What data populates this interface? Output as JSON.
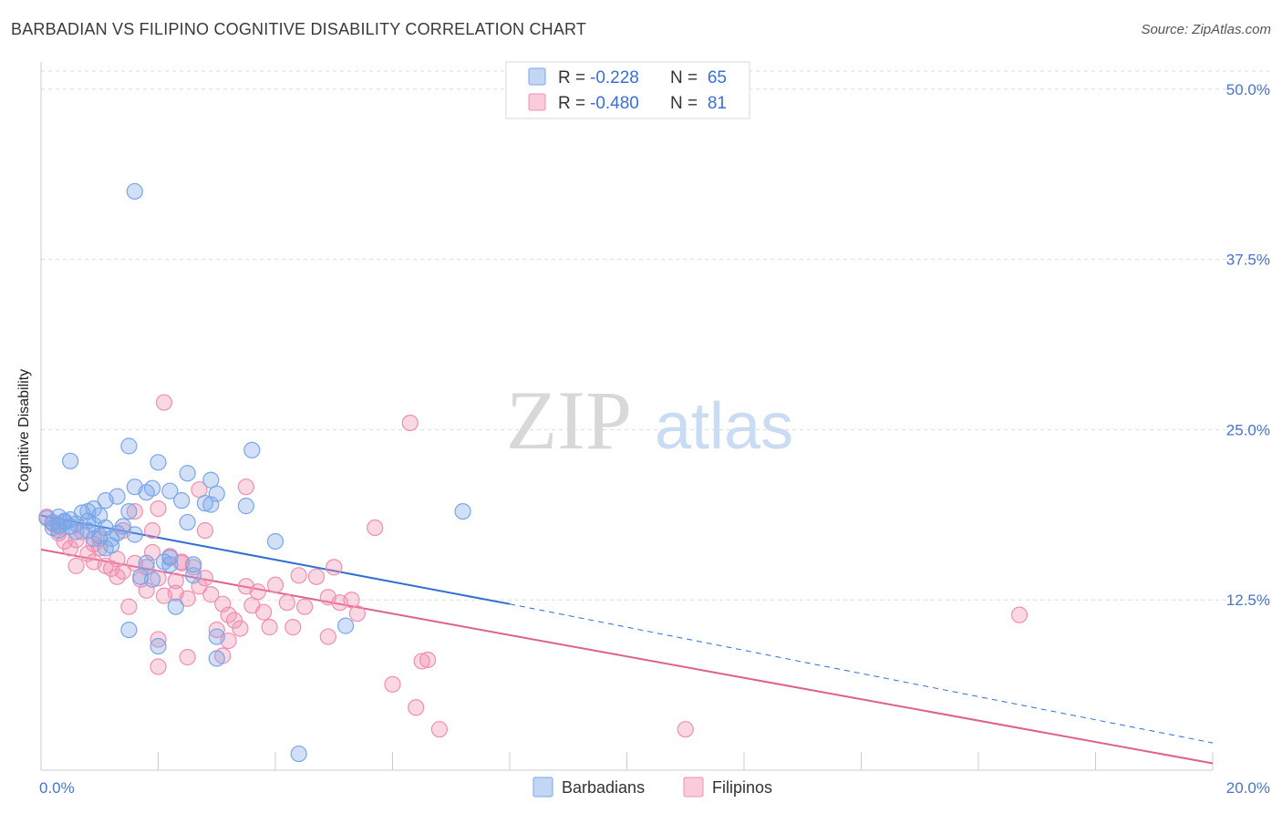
{
  "chart_data": {
    "type": "scatter",
    "title": "BARBADIAN VS FILIPINO COGNITIVE DISABILITY CORRELATION CHART",
    "source": "Source: ZipAtlas.com",
    "ylabel": "Cognitive Disability",
    "xlabel": "",
    "x_ticks": [
      "0.0%",
      "20.0%"
    ],
    "y_ticks": [
      "12.5%",
      "25.0%",
      "37.5%",
      "50.0%"
    ],
    "xlim": [
      0,
      20
    ],
    "ylim": [
      0,
      52
    ],
    "watermark": {
      "zip": "ZIP",
      "atlas": "atlas"
    },
    "legend": {
      "r_label": "R =",
      "n_label": "N =",
      "entries": [
        {
          "name": "Barbadians",
          "r": "-0.228",
          "n": "65",
          "color": "#7aa6e8"
        },
        {
          "name": "Filipinos",
          "r": "-0.480",
          "n": "81",
          "color": "#f08fb0"
        }
      ]
    },
    "series": [
      {
        "name": "Barbadians",
        "color": "#7aa6e8",
        "line_color": "#2f6fd1",
        "trend": {
          "x0": 0,
          "y0": 18.7,
          "x1": 8,
          "y1": 12.2,
          "dash_to_x": 20,
          "dash_to_y": 2.0
        },
        "points": [
          [
            0.1,
            18.5
          ],
          [
            0.2,
            18.2
          ],
          [
            0.2,
            17.8
          ],
          [
            0.3,
            18.6
          ],
          [
            0.3,
            18.0
          ],
          [
            0.4,
            18.3
          ],
          [
            0.5,
            17.9
          ],
          [
            0.5,
            18.4
          ],
          [
            0.6,
            18.1
          ],
          [
            0.6,
            17.5
          ],
          [
            0.7,
            18.9
          ],
          [
            0.8,
            18.3
          ],
          [
            0.8,
            17.6
          ],
          [
            0.9,
            19.2
          ],
          [
            0.9,
            18.0
          ],
          [
            1.0,
            17.2
          ],
          [
            1.0,
            18.7
          ],
          [
            1.1,
            17.8
          ],
          [
            1.2,
            17.0
          ],
          [
            1.2,
            16.5
          ],
          [
            1.3,
            20.1
          ],
          [
            1.4,
            17.9
          ],
          [
            1.5,
            19.0
          ],
          [
            1.5,
            10.3
          ],
          [
            1.6,
            17.3
          ],
          [
            1.6,
            20.8
          ],
          [
            1.7,
            14.2
          ],
          [
            1.8,
            20.4
          ],
          [
            1.9,
            20.7
          ],
          [
            2.0,
            22.6
          ],
          [
            2.1,
            15.3
          ],
          [
            2.2,
            15.6
          ],
          [
            2.2,
            20.5
          ],
          [
            2.3,
            12.0
          ],
          [
            2.4,
            19.8
          ],
          [
            2.5,
            18.2
          ],
          [
            2.6,
            14.3
          ],
          [
            1.5,
            23.8
          ],
          [
            1.1,
            19.8
          ],
          [
            0.8,
            19.0
          ],
          [
            1.6,
            42.5
          ],
          [
            2.5,
            21.8
          ],
          [
            2.9,
            19.5
          ],
          [
            2.9,
            21.3
          ],
          [
            3.0,
            20.3
          ],
          [
            1.9,
            14.0
          ],
          [
            2.2,
            15.1
          ],
          [
            3.5,
            19.4
          ],
          [
            3.6,
            23.5
          ],
          [
            2.0,
            9.1
          ],
          [
            3.0,
            9.8
          ],
          [
            3.0,
            8.2
          ],
          [
            4.0,
            16.8
          ],
          [
            5.2,
            10.6
          ],
          [
            7.2,
            19.0
          ],
          [
            1.8,
            15.2
          ],
          [
            2.6,
            15.1
          ],
          [
            0.5,
            22.7
          ],
          [
            0.3,
            17.6
          ],
          [
            4.4,
            1.2
          ],
          [
            2.8,
            19.6
          ],
          [
            0.4,
            18.2
          ],
          [
            1.1,
            16.3
          ],
          [
            0.9,
            17.0
          ],
          [
            1.3,
            17.4
          ]
        ]
      },
      {
        "name": "Filipinos",
        "color": "#f08fb0",
        "line_color": "#e0608c",
        "trend": {
          "x0": 0,
          "y0": 16.2,
          "x1": 20,
          "y1": 0.5
        },
        "points": [
          [
            0.1,
            18.6
          ],
          [
            0.2,
            18.1
          ],
          [
            0.3,
            17.4
          ],
          [
            0.4,
            16.8
          ],
          [
            0.5,
            16.3
          ],
          [
            0.6,
            16.9
          ],
          [
            0.7,
            17.5
          ],
          [
            0.8,
            15.9
          ],
          [
            0.9,
            16.6
          ],
          [
            1.0,
            17.0
          ],
          [
            1.1,
            15.0
          ],
          [
            1.2,
            14.8
          ],
          [
            1.3,
            15.5
          ],
          [
            1.4,
            14.6
          ],
          [
            1.5,
            12.0
          ],
          [
            1.6,
            15.2
          ],
          [
            1.7,
            14.0
          ],
          [
            1.8,
            13.2
          ],
          [
            1.9,
            17.6
          ],
          [
            2.0,
            14.1
          ],
          [
            2.1,
            12.8
          ],
          [
            2.2,
            15.7
          ],
          [
            2.3,
            13.9
          ],
          [
            2.4,
            15.2
          ],
          [
            2.5,
            12.6
          ],
          [
            2.6,
            14.9
          ],
          [
            2.7,
            13.5
          ],
          [
            2.8,
            14.1
          ],
          [
            2.9,
            12.9
          ],
          [
            3.0,
            10.3
          ],
          [
            3.1,
            12.2
          ],
          [
            3.2,
            11.4
          ],
          [
            3.3,
            11.0
          ],
          [
            3.4,
            10.4
          ],
          [
            3.5,
            13.5
          ],
          [
            3.6,
            12.1
          ],
          [
            3.7,
            13.1
          ],
          [
            3.8,
            11.6
          ],
          [
            3.9,
            10.5
          ],
          [
            4.0,
            13.6
          ],
          [
            4.2,
            12.3
          ],
          [
            4.3,
            10.5
          ],
          [
            4.4,
            14.3
          ],
          [
            4.5,
            12.0
          ],
          [
            4.7,
            14.2
          ],
          [
            4.9,
            9.8
          ],
          [
            5.1,
            12.3
          ],
          [
            5.3,
            12.5
          ],
          [
            5.4,
            11.5
          ],
          [
            5.7,
            17.8
          ],
          [
            6.0,
            6.3
          ],
          [
            6.3,
            25.5
          ],
          [
            6.5,
            8.0
          ],
          [
            6.4,
            4.6
          ],
          [
            2.1,
            27.0
          ],
          [
            2.0,
            19.2
          ],
          [
            1.6,
            19.0
          ],
          [
            2.7,
            20.6
          ],
          [
            3.5,
            20.8
          ],
          [
            2.4,
            15.3
          ],
          [
            1.4,
            17.6
          ],
          [
            2.0,
            9.6
          ],
          [
            2.5,
            8.3
          ],
          [
            2.0,
            7.6
          ],
          [
            3.2,
            9.5
          ],
          [
            3.1,
            8.4
          ],
          [
            6.8,
            3.0
          ],
          [
            11.0,
            3.0
          ],
          [
            16.7,
            11.4
          ],
          [
            0.9,
            15.3
          ],
          [
            1.3,
            14.2
          ],
          [
            2.8,
            17.6
          ],
          [
            0.6,
            15.0
          ],
          [
            1.8,
            14.9
          ],
          [
            5.0,
            14.9
          ],
          [
            1.9,
            16.0
          ],
          [
            1.0,
            16.3
          ],
          [
            0.3,
            17.9
          ],
          [
            4.9,
            12.7
          ],
          [
            6.6,
            8.1
          ],
          [
            2.3,
            13.0
          ]
        ]
      }
    ],
    "reference_lines": [
      12.5,
      25.0,
      37.5,
      50.0
    ]
  }
}
